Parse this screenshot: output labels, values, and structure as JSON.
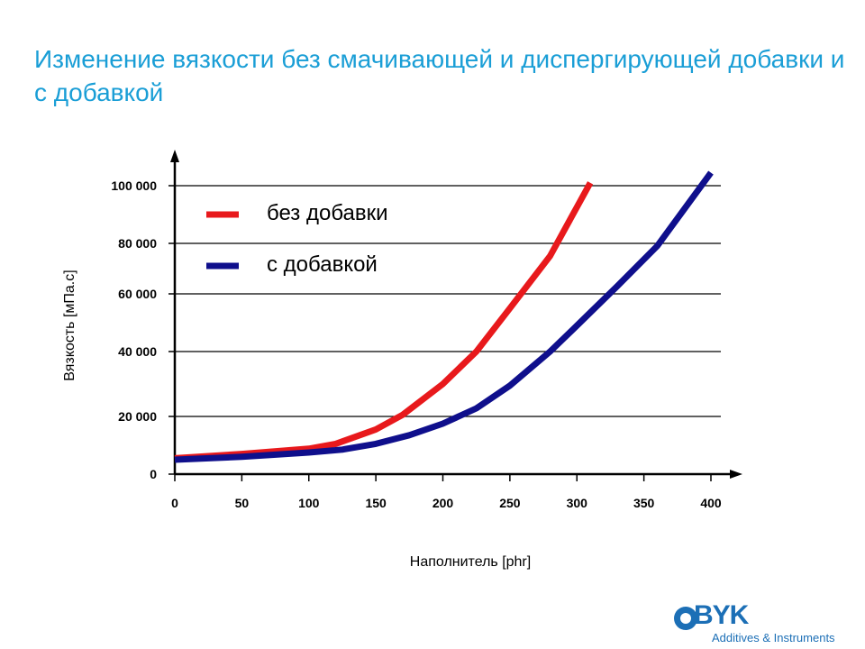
{
  "title": "Изменение вязкости без смачивающей и диспергирующей добавки и с добавкой",
  "logo": {
    "name": "BYK",
    "subtitle": "Additives & Instruments"
  },
  "colors": {
    "title": "#1a9ed6",
    "series_red": "#e8191c",
    "series_blue": "#0f0f8c",
    "logo": "#1c6fb6"
  },
  "chart_data": {
    "type": "line",
    "xlabel": "Наполнитель [phr]",
    "ylabel": "Вязкость [мПа.с]",
    "xlim": [
      0,
      420
    ],
    "ylim": [
      0,
      100000
    ],
    "x_ticks": [
      0,
      50,
      100,
      150,
      200,
      250,
      300,
      350,
      400
    ],
    "x_tick_labels": [
      "0",
      "50",
      "100",
      "150",
      "200",
      "250",
      "300",
      "350",
      "400"
    ],
    "y_ticks": [
      0,
      20000,
      40000,
      60000,
      80000,
      100000
    ],
    "y_tick_labels": [
      "0",
      "20 000",
      "40 000",
      "60 000",
      "80 000",
      "100 000"
    ],
    "grid": "horizontal",
    "legend_position": "top-left",
    "series": [
      {
        "name": "без добавки",
        "color": "#e8191c",
        "x": [
          0,
          50,
          100,
          120,
          150,
          170,
          200,
          225,
          250,
          280,
          310
        ],
        "y": [
          5500,
          7000,
          8800,
          10500,
          15500,
          20500,
          30000,
          40000,
          55000,
          75000,
          101000
        ]
      },
      {
        "name": "с добавкой",
        "color": "#0f0f8c",
        "x": [
          0,
          50,
          100,
          125,
          150,
          175,
          200,
          225,
          250,
          280,
          300,
          330,
          360,
          400
        ],
        "y": [
          5000,
          6000,
          7500,
          8500,
          10500,
          13500,
          17500,
          22500,
          29500,
          40000,
          49000,
          63000,
          79000,
          104500
        ]
      }
    ]
  }
}
